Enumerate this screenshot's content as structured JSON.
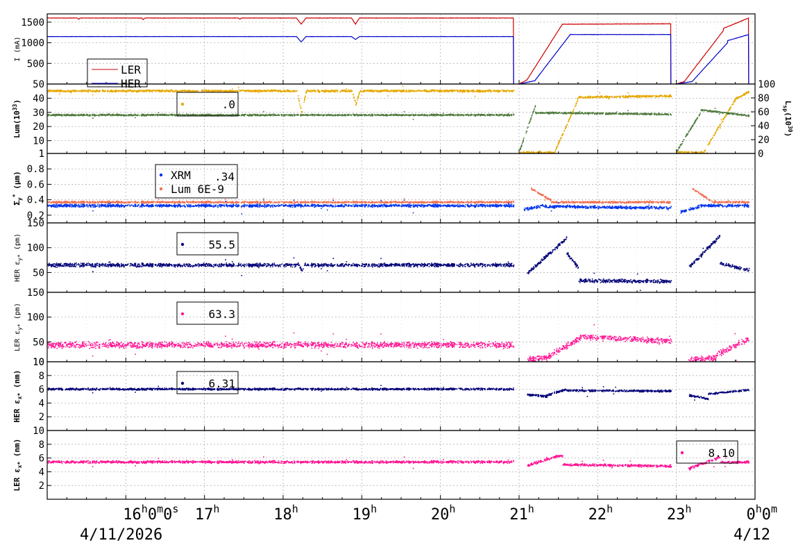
{
  "chart_data": {
    "type": "scatter",
    "x_axis": {
      "min_hour": 15,
      "max_hour": 24,
      "ticks": [
        {
          "hour": 16,
          "label": "16",
          "sup1": "h",
          "mid": "0",
          "sup2": "m",
          "tail": "0",
          "sup3": "s"
        },
        {
          "hour": 17,
          "label": "17",
          "sup1": "h"
        },
        {
          "hour": 18,
          "label": "18",
          "sup1": "h"
        },
        {
          "hour": 19,
          "label": "19",
          "sup1": "h"
        },
        {
          "hour": 20,
          "label": "20",
          "sup1": "h"
        },
        {
          "hour": 21,
          "label": "21",
          "sup1": "h"
        },
        {
          "hour": 22,
          "label": "22",
          "sup1": "h"
        },
        {
          "hour": 23,
          "label": "23",
          "sup1": "h"
        },
        {
          "hour": 24,
          "label": "0",
          "sup1": "h",
          "mid": "0",
          "sup2": "m"
        }
      ],
      "date_left": "4/11/2026",
      "date_right": "4/12"
    },
    "panels": [
      {
        "id": "current",
        "ylabel": "I (mA)",
        "ymin": 0,
        "ymax": 1700,
        "yticks": [
          500,
          1000,
          1500
        ],
        "legend": [
          {
            "name": "LER",
            "color": "#cc0000",
            "symbol": "line"
          },
          {
            "name": "HER",
            "color": "#0000cc",
            "symbol": "line"
          }
        ],
        "series": [
          {
            "name": "LER",
            "color": "#cc0000",
            "kind": "line",
            "base": 1600,
            "noise": 8,
            "segments": [
              [
                15.0,
                20.93
              ],
              [
                21.0,
                22.93
              ],
              [
                23.0,
                23.92
              ]
            ],
            "dips": [
              [
                18.23,
                1450,
                0.06
              ],
              [
                18.92,
                1450,
                0.05
              ],
              [
                16.22,
                1560,
                0.02
              ],
              [
                17.45,
                1570,
                0.02
              ],
              [
                15.4,
                1570,
                0.02
              ]
            ],
            "ramps": [
              [
                21.0,
                21.1,
                0,
                100
              ],
              [
                21.1,
                21.55,
                100,
                1450
              ],
              [
                21.55,
                22.93,
                1450,
                1460
              ],
              [
                23.0,
                23.1,
                0,
                60
              ],
              [
                23.1,
                23.6,
                60,
                1300
              ],
              [
                23.6,
                23.92,
                1350,
                1600
              ]
            ]
          },
          {
            "name": "HER",
            "color": "#0000cc",
            "kind": "line",
            "base": 1150,
            "noise": 6,
            "segments": [
              [
                15.0,
                20.93
              ],
              [
                21.0,
                22.93
              ],
              [
                23.0,
                23.92
              ]
            ],
            "dips": [
              [
                18.23,
                1020,
                0.06
              ],
              [
                18.92,
                1080,
                0.05
              ]
            ],
            "ramps": [
              [
                21.0,
                21.2,
                0,
                80
              ],
              [
                21.2,
                21.65,
                80,
                1200
              ],
              [
                21.65,
                22.93,
                1200,
                1200
              ],
              [
                23.0,
                23.2,
                0,
                60
              ],
              [
                23.2,
                23.65,
                60,
                1000
              ],
              [
                23.65,
                23.92,
                1050,
                1200
              ]
            ]
          }
        ]
      },
      {
        "id": "luminosity",
        "ylabel": "Lum(10",
        "ylabel_sup": "33",
        "ylabel_tail": ")",
        "ymin": 1,
        "ymax": 50,
        "yticks": [
          1,
          10,
          20,
          30,
          40,
          50
        ],
        "y2label": "L",
        "y2label_sub": "sp",
        "y2label_mid": "(10",
        "y2label_sup": "30",
        "y2label_tail": ")",
        "y2ticks": [
          0,
          20,
          40,
          60,
          80,
          100
        ],
        "legend": [
          {
            "name": "",
            "value": ".0",
            "color": "#e6a800",
            "symbol": "dot"
          }
        ],
        "series": [
          {
            "name": "Lum",
            "color": "#e6a800",
            "kind": "dots",
            "base": 45.5,
            "noise": 0.6,
            "segments": [
              [
                15.0,
                20.93
              ],
              [
                21.0,
                22.93
              ],
              [
                23.0,
                23.92
              ]
            ],
            "ramps": [
              [
                21.0,
                21.45,
                2,
                2
              ],
              [
                21.45,
                21.75,
                3,
                40
              ],
              [
                21.75,
                22.93,
                41,
                42
              ],
              [
                23.0,
                23.35,
                2,
                2
              ],
              [
                23.35,
                23.75,
                3,
                40
              ],
              [
                23.75,
                23.92,
                40,
                45
              ]
            ],
            "dips": [
              [
                18.23,
                30,
                0.06
              ],
              [
                18.92,
                36,
                0.05
              ]
            ]
          },
          {
            "name": "Lsp",
            "color": "#4e7a3c",
            "kind": "dots",
            "base": 28.5,
            "noise": 0.5,
            "segments": [
              [
                15.0,
                20.93
              ],
              [
                21.0,
                22.93
              ],
              [
                23.0,
                23.92
              ]
            ],
            "ramps": [
              [
                21.0,
                21.2,
                3,
                35
              ],
              [
                21.2,
                21.5,
                30,
                30
              ],
              [
                21.5,
                22.93,
                30,
                29
              ],
              [
                23.0,
                23.3,
                3,
                30
              ],
              [
                23.3,
                23.92,
                32,
                28
              ]
            ],
            "dips": []
          }
        ]
      },
      {
        "id": "sigma",
        "ylabel": "Σ",
        "ylabel_sub": "y",
        "ylabel_sup": "*",
        "ylabel_tail": " (μm)",
        "ymin": 0.1,
        "ymax": 1.0,
        "yticks": [
          0.2,
          0.4,
          0.6,
          0.8,
          1
        ],
        "ytick_labels": [
          "0.2",
          "0.4",
          "0.6",
          "0.8",
          "1"
        ],
        "legend": [
          {
            "name": "XRM",
            "value": ".34",
            "color": "#0033ee",
            "symbol": "dot"
          },
          {
            "name": "Lum 6E-9",
            "value": "",
            "color": "#f07050",
            "symbol": "dot"
          }
        ],
        "series": [
          {
            "name": "Lum 6E-9",
            "color": "#f07050",
            "kind": "dots",
            "base": 0.375,
            "noise": 0.01,
            "segments": [
              [
                15.0,
                20.93
              ],
              [
                21.15,
                22.93
              ],
              [
                23.2,
                23.92
              ]
            ],
            "ramps": [
              [
                21.15,
                21.4,
                0.55,
                0.4
              ],
              [
                23.2,
                23.45,
                0.55,
                0.38
              ]
            ],
            "dips": []
          },
          {
            "name": "XRM",
            "color": "#0033ee",
            "kind": "dots",
            "base": 0.33,
            "noise": 0.015,
            "segments": [
              [
                15.0,
                20.93
              ],
              [
                21.05,
                22.93
              ],
              [
                23.05,
                23.92
              ]
            ],
            "ramps": [
              [
                21.05,
                21.3,
                0.28,
                0.33
              ],
              [
                21.3,
                22.93,
                0.32,
                0.3
              ],
              [
                23.05,
                23.3,
                0.25,
                0.32
              ]
            ],
            "dips": []
          }
        ]
      },
      {
        "id": "her_eps_y",
        "ylabel": "HER ε",
        "ylabel_sub": "y*",
        "ylabel_tail": " (pm)",
        "ymin": 10,
        "ymax": 150,
        "yticks": [
          50,
          100,
          150
        ],
        "legend": [
          {
            "name": "",
            "value": "55.5",
            "color": "#000077",
            "symbol": "dot"
          }
        ],
        "series": [
          {
            "name": "HER εy",
            "color": "#000077",
            "kind": "dots",
            "base": 66,
            "noise": 3,
            "segments": [
              [
                15.0,
                20.93
              ],
              [
                21.1,
                22.93
              ],
              [
                23.15,
                23.92
              ]
            ],
            "ramps": [
              [
                21.1,
                21.6,
                50,
                120
              ],
              [
                21.6,
                21.75,
                90,
                60
              ],
              [
                21.75,
                22.93,
                35,
                33
              ],
              [
                23.15,
                23.55,
                60,
                125
              ],
              [
                23.55,
                23.92,
                70,
                55
              ]
            ],
            "dips": [
              [
                18.23,
                55,
                0.04
              ]
            ]
          }
        ]
      },
      {
        "id": "ler_eps_y",
        "ylabel": "LER ε",
        "ylabel_sub": "y*",
        "ylabel_tail": " (pm)",
        "ymin": 10,
        "ymax": 150,
        "yticks": [
          10,
          50,
          100,
          150
        ],
        "legend": [
          {
            "name": "",
            "value": "63.3",
            "color": "#ff1493",
            "symbol": "dot"
          }
        ],
        "series": [
          {
            "name": "LER εy",
            "color": "#ff1493",
            "kind": "dots",
            "base": 45,
            "noise": 5,
            "segments": [
              [
                15.0,
                20.93
              ],
              [
                21.1,
                22.93
              ],
              [
                23.15,
                23.92
              ]
            ],
            "ramps": [
              [
                21.1,
                21.35,
                15,
                18
              ],
              [
                21.35,
                21.8,
                20,
                62
              ],
              [
                21.8,
                22.93,
                62,
                52
              ],
              [
                23.15,
                23.5,
                15,
                18
              ],
              [
                23.5,
                23.92,
                25,
                58
              ]
            ],
            "dips": []
          }
        ]
      },
      {
        "id": "her_eps_x",
        "ylabel": "HER ε",
        "ylabel_sub": "x*",
        "ylabel_tail": " (nm)",
        "ymin": 0,
        "ymax": 10,
        "yticks": [
          2,
          4,
          6,
          8,
          10
        ],
        "legend": [
          {
            "name": "",
            "value": "6.31",
            "color": "#000077",
            "symbol": "dot"
          }
        ],
        "series": [
          {
            "name": "HER εx",
            "color": "#000077",
            "kind": "dots",
            "base": 6.1,
            "noise": 0.12,
            "segments": [
              [
                15.0,
                20.93
              ],
              [
                21.1,
                22.93
              ],
              [
                23.15,
                23.92
              ]
            ],
            "ramps": [
              [
                21.1,
                21.35,
                5.3,
                5.0
              ],
              [
                21.35,
                21.6,
                5.2,
                6.1
              ],
              [
                21.6,
                22.93,
                5.9,
                5.8
              ],
              [
                23.15,
                23.4,
                5.2,
                4.7
              ],
              [
                23.4,
                23.92,
                5.4,
                6.0
              ]
            ],
            "dips": []
          }
        ]
      },
      {
        "id": "ler_eps_x",
        "ylabel": "LER ε",
        "ylabel_sub": "x*",
        "ylabel_tail": " (nm)",
        "ymin": 0,
        "ymax": 10,
        "yticks": [
          2,
          4,
          6,
          8,
          10
        ],
        "legend": [
          {
            "name": "",
            "value": "8.10",
            "color": "#ff1493",
            "symbol": "dot"
          }
        ],
        "series": [
          {
            "name": "LER εx",
            "color": "#ff1493",
            "kind": "dots",
            "base": 5.5,
            "noise": 0.15,
            "segments": [
              [
                15.0,
                20.93
              ],
              [
                21.1,
                22.93
              ],
              [
                23.15,
                23.92
              ]
            ],
            "ramps": [
              [
                21.1,
                21.5,
                5.0,
                6.4
              ],
              [
                21.5,
                21.55,
                6.4,
                6.4
              ],
              [
                21.55,
                22.93,
                5.1,
                4.9
              ],
              [
                23.15,
                23.55,
                4.5,
                6.2
              ],
              [
                23.55,
                23.92,
                5.4,
                5.5
              ]
            ],
            "dips": []
          }
        ]
      }
    ]
  }
}
